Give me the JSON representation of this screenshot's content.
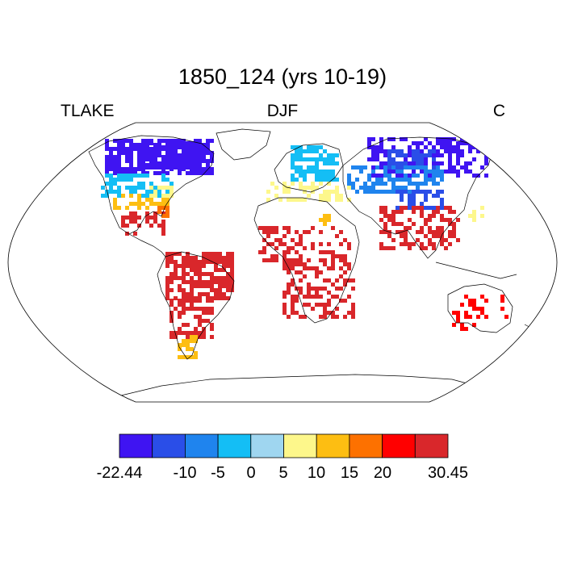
{
  "title": "1850_124 (yrs 10-19)",
  "subtitle_left": "TLAKE",
  "subtitle_center": "DJF",
  "subtitle_right": "C",
  "projection": "Robinson",
  "legend": {
    "colors": [
      "#3f14f2",
      "#2a4ee8",
      "#1f84ee",
      "#14bef5",
      "#9fd6f0",
      "#fdf78b",
      "#fdbe12",
      "#fd7100",
      "#ff0000",
      "#d9272b"
    ],
    "tick_labels": [
      "-22.44",
      "-10",
      "-5",
      "0",
      "5",
      "10",
      "15",
      "20",
      "30.45"
    ],
    "boundaries": [
      "",
      "-10",
      "-5",
      "0",
      "5",
      "10",
      "15",
      "20",
      ""
    ]
  },
  "regions": [
    {
      "name": "north-america-north",
      "color": "#3f14f2"
    },
    {
      "name": "north-america-mid",
      "color": "#14bef5"
    },
    {
      "name": "north-america-south",
      "color": "#fdbe12"
    },
    {
      "name": "central-america",
      "color": "#d9272b"
    },
    {
      "name": "south-america",
      "color": "#d9272b"
    },
    {
      "name": "patagonia",
      "color": "#fdbe12"
    },
    {
      "name": "europe",
      "color": "#14bef5"
    },
    {
      "name": "mediterranean",
      "color": "#fdf78b"
    },
    {
      "name": "siberia",
      "color": "#3f14f2"
    },
    {
      "name": "central-asia",
      "color": "#1f84ee"
    },
    {
      "name": "tibet",
      "color": "#2a4ee8"
    },
    {
      "name": "south-asia",
      "color": "#d9272b"
    },
    {
      "name": "africa",
      "color": "#d9272b"
    },
    {
      "name": "australia",
      "color": "#ff0000"
    }
  ]
}
